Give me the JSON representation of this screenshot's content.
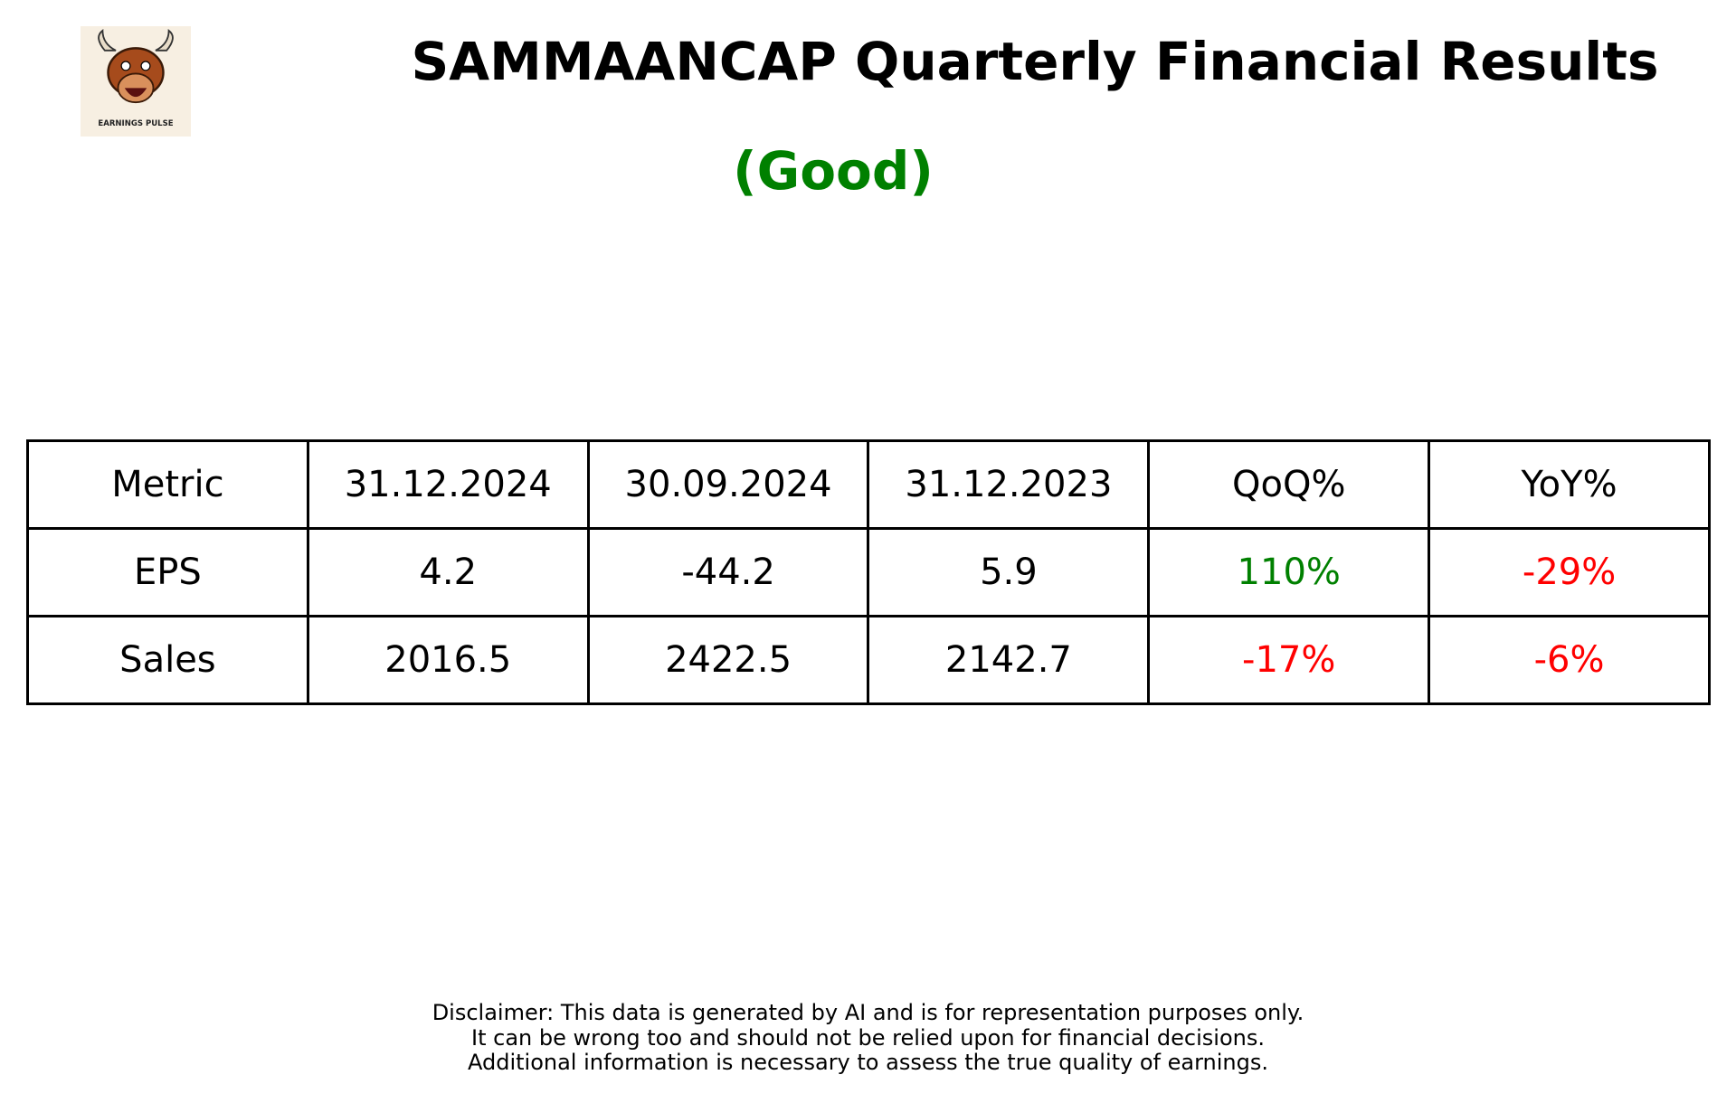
{
  "header": {
    "title": "SAMMAANCAP Quarterly Financial Results",
    "rating": "(Good)",
    "logo_caption": "EARNINGS PULSE"
  },
  "table": {
    "header": [
      "Metric",
      "31.12.2024",
      "30.09.2024",
      "31.12.2023",
      "QoQ%",
      "YoY%"
    ],
    "rows": [
      [
        "EPS",
        "4.2",
        "-44.2",
        "5.9",
        "110%",
        "-29%"
      ],
      [
        "Sales",
        "2016.5",
        "2422.5",
        "2142.7",
        "-17%",
        "-6%"
      ]
    ]
  },
  "disclaimer": [
    "Disclaimer: This data is generated by AI and is for representation purposes only.",
    "It can be wrong too and should not be relied upon for financial decisions.",
    "Additional information is necessary to assess the true quality of earnings."
  ]
}
